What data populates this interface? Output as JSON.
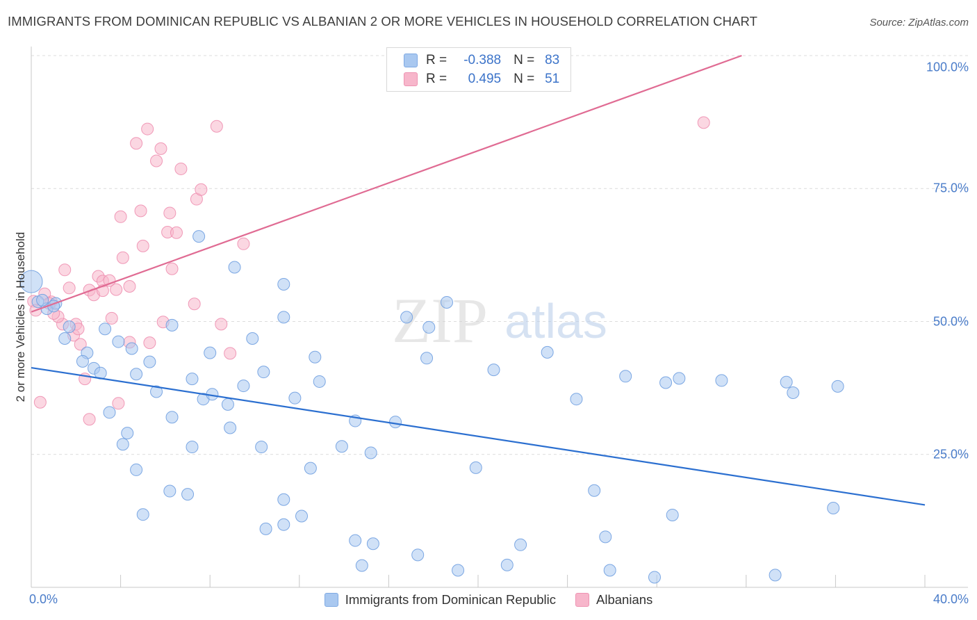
{
  "title": "IMMIGRANTS FROM DOMINICAN REPUBLIC VS ALBANIAN 2 OR MORE VEHICLES IN HOUSEHOLD CORRELATION CHART",
  "source": "Source: ZipAtlas.com",
  "watermark": {
    "zip": "ZIP",
    "atlas": "atlas"
  },
  "legend": {
    "rows": [
      {
        "r_label": "R =",
        "r_value": "-0.388",
        "n_label": "N =",
        "n_value": "83",
        "color": "#a9c8f0"
      },
      {
        "r_label": "R =",
        "r_value": "0.495",
        "n_label": "N =",
        "n_value": "51",
        "color": "#f7b6cb"
      }
    ]
  },
  "bottom_legend": [
    {
      "label": "Immigrants from Dominican Republic",
      "color": "#a9c8f0"
    },
    {
      "label": "Albanians",
      "color": "#f7b6cb"
    }
  ],
  "colors": {
    "blue_fill": "#a9c8f0",
    "blue_stroke": "#6f9fe0",
    "blue_line": "#2b6fd0",
    "pink_fill": "#f7b6cb",
    "pink_stroke": "#ee8fb0",
    "pink_line": "#e06b93",
    "grid": "#dcdcdc"
  },
  "chart_data": {
    "type": "scatter",
    "title": "IMMIGRANTS FROM DOMINICAN REPUBLIC VS ALBANIAN 2 OR MORE VEHICLES IN HOUSEHOLD CORRELATION CHART",
    "xlabel": "",
    "ylabel": "2 or more Vehicles in Household",
    "xlim": [
      0,
      40
    ],
    "ylim": [
      0,
      100
    ],
    "x_tick_labels": [
      "0.0%",
      "40.0%"
    ],
    "y_ticks": [
      25,
      50,
      75,
      100
    ],
    "y_tick_labels": [
      "25.0%",
      "50.0%",
      "75.0%",
      "100.0%"
    ],
    "grid": true,
    "series": [
      {
        "name": "Immigrants from Dominican Republic",
        "points": [
          [
            0.0,
            57.5
          ],
          [
            0.3,
            53.7
          ],
          [
            0.7,
            52.4
          ],
          [
            1.1,
            53.4
          ],
          [
            1.7,
            49.0
          ],
          [
            1.5,
            46.8
          ],
          [
            1.0,
            52.9
          ],
          [
            2.5,
            44.1
          ],
          [
            2.3,
            42.5
          ],
          [
            2.8,
            41.2
          ],
          [
            3.1,
            40.3
          ],
          [
            3.3,
            48.6
          ],
          [
            3.9,
            46.2
          ],
          [
            4.5,
            44.9
          ],
          [
            4.7,
            40.1
          ],
          [
            5.3,
            42.4
          ],
          [
            5.6,
            36.8
          ],
          [
            6.3,
            49.3
          ],
          [
            6.3,
            32.0
          ],
          [
            7.2,
            39.2
          ],
          [
            7.7,
            35.4
          ],
          [
            8.0,
            44.1
          ],
          [
            8.1,
            36.3
          ],
          [
            8.8,
            34.4
          ],
          [
            9.5,
            37.9
          ],
          [
            9.9,
            46.8
          ],
          [
            10.4,
            40.5
          ],
          [
            11.3,
            50.8
          ],
          [
            11.3,
            57.0
          ],
          [
            11.8,
            35.6
          ],
          [
            12.7,
            43.3
          ],
          [
            12.9,
            38.7
          ],
          [
            14.5,
            31.3
          ],
          [
            16.3,
            31.1
          ],
          [
            16.8,
            50.8
          ],
          [
            17.7,
            43.1
          ],
          [
            17.8,
            48.9
          ],
          [
            18.6,
            53.6
          ],
          [
            20.7,
            40.9
          ],
          [
            23.1,
            44.2
          ],
          [
            24.4,
            35.4
          ],
          [
            26.6,
            39.7
          ],
          [
            28.4,
            38.5
          ],
          [
            29.0,
            39.3
          ],
          [
            30.9,
            38.9
          ],
          [
            33.8,
            38.6
          ],
          [
            34.1,
            36.6
          ],
          [
            36.1,
            37.8
          ],
          [
            3.5,
            32.9
          ],
          [
            4.3,
            29.0
          ],
          [
            4.1,
            26.9
          ],
          [
            4.7,
            22.1
          ],
          [
            5.0,
            13.7
          ],
          [
            6.2,
            18.1
          ],
          [
            7.0,
            17.5
          ],
          [
            7.2,
            26.4
          ],
          [
            8.9,
            30.0
          ],
          [
            10.3,
            26.4
          ],
          [
            11.3,
            16.5
          ],
          [
            10.5,
            11.0
          ],
          [
            11.3,
            11.8
          ],
          [
            12.1,
            13.4
          ],
          [
            12.5,
            22.4
          ],
          [
            13.9,
            26.5
          ],
          [
            14.5,
            8.8
          ],
          [
            15.2,
            25.3
          ],
          [
            15.3,
            8.2
          ],
          [
            14.8,
            4.1
          ],
          [
            17.3,
            6.1
          ],
          [
            19.1,
            3.2
          ],
          [
            19.9,
            22.5
          ],
          [
            21.3,
            4.2
          ],
          [
            21.9,
            8.0
          ],
          [
            25.2,
            18.2
          ],
          [
            25.7,
            9.5
          ],
          [
            25.9,
            3.2
          ],
          [
            27.9,
            1.9
          ],
          [
            28.7,
            13.6
          ],
          [
            33.3,
            2.3
          ],
          [
            35.9,
            14.9
          ],
          [
            7.5,
            66.0
          ],
          [
            9.1,
            60.2
          ],
          [
            0.5,
            54.0
          ]
        ],
        "trend": {
          "x": [
            0,
            40
          ],
          "y": [
            41.3,
            15.5
          ]
        }
      },
      {
        "name": "Albanians",
        "points": [
          [
            0.1,
            53.8
          ],
          [
            0.4,
            34.8
          ],
          [
            0.9,
            53.7
          ],
          [
            0.6,
            55.2
          ],
          [
            1.4,
            49.5
          ],
          [
            1.2,
            50.9
          ],
          [
            1.5,
            59.7
          ],
          [
            1.7,
            56.3
          ],
          [
            1.9,
            47.4
          ],
          [
            2.0,
            49.5
          ],
          [
            2.1,
            48.6
          ],
          [
            2.2,
            45.7
          ],
          [
            2.4,
            39.2
          ],
          [
            2.6,
            31.6
          ],
          [
            2.6,
            55.9
          ],
          [
            2.8,
            55.0
          ],
          [
            3.0,
            58.5
          ],
          [
            3.2,
            57.6
          ],
          [
            3.2,
            55.8
          ],
          [
            3.5,
            57.7
          ],
          [
            3.6,
            50.6
          ],
          [
            3.8,
            56.0
          ],
          [
            3.9,
            34.6
          ],
          [
            4.0,
            69.7
          ],
          [
            4.1,
            62.0
          ],
          [
            4.4,
            56.6
          ],
          [
            4.4,
            46.1
          ],
          [
            4.7,
            83.5
          ],
          [
            4.9,
            70.8
          ],
          [
            5.0,
            64.2
          ],
          [
            5.2,
            86.2
          ],
          [
            5.3,
            46.0
          ],
          [
            5.6,
            80.2
          ],
          [
            5.8,
            82.5
          ],
          [
            5.9,
            49.9
          ],
          [
            6.1,
            66.8
          ],
          [
            6.2,
            70.4
          ],
          [
            6.3,
            59.9
          ],
          [
            6.5,
            66.7
          ],
          [
            6.7,
            78.7
          ],
          [
            7.3,
            53.3
          ],
          [
            7.4,
            73.0
          ],
          [
            7.6,
            74.8
          ],
          [
            8.3,
            86.7
          ],
          [
            8.5,
            49.5
          ],
          [
            8.9,
            44.0
          ],
          [
            9.5,
            64.6
          ],
          [
            30.1,
            87.4
          ],
          [
            0.8,
            53.4
          ],
          [
            0.2,
            52.1
          ],
          [
            1.0,
            51.5
          ]
        ],
        "trend": {
          "x": [
            0,
            31.8
          ],
          "y": [
            51.8,
            100
          ]
        }
      }
    ]
  }
}
